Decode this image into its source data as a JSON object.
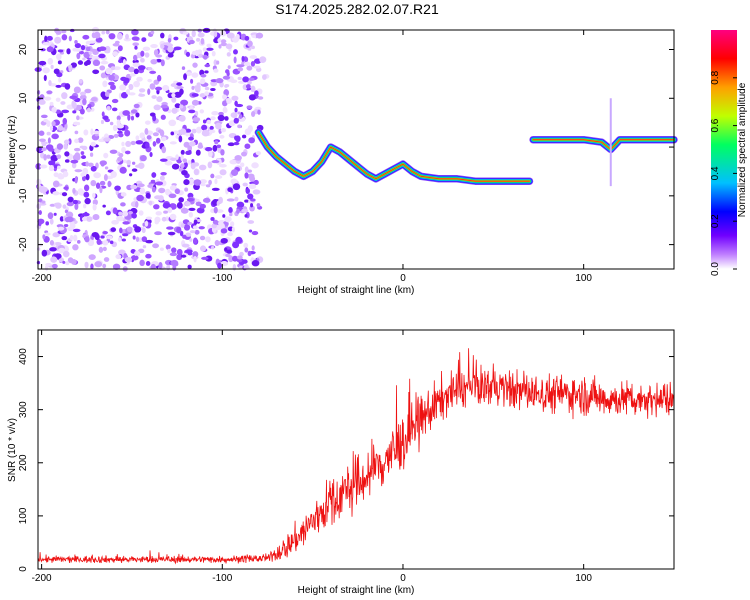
{
  "title": "S174.2025.282.02.07.R21",
  "chart_data": [
    {
      "type": "heatmap",
      "title": "S174.2025.282.02.07.R21",
      "xlabel": "Height of straight line (km)",
      "ylabel": "Frequency (Hz)",
      "xlim": [
        -202,
        150
      ],
      "ylim": [
        -25,
        24
      ],
      "xticks": [
        -200,
        -100,
        0,
        100
      ],
      "yticks": [
        -20,
        -10,
        0,
        10,
        20
      ],
      "colorbar": {
        "label": "Normalized spectral amplitude",
        "range": [
          0,
          1
        ],
        "ticks": [
          "0.0",
          "0.2",
          "0.4",
          "0.6",
          "0.8"
        ],
        "colors": [
          "#ffffff",
          "#c080ff",
          "#7000ff",
          "#0000ff",
          "#00c0ff",
          "#00ff60",
          "#c0ff00",
          "#ffa000",
          "#ff0000",
          "#ff0080"
        ]
      },
      "noise_region_km": [
        -202,
        -75
      ],
      "track": {
        "x": [
          -80,
          -75,
          -70,
          -65,
          -60,
          -55,
          -50,
          -45,
          -40,
          -35,
          -30,
          -25,
          -20,
          -15,
          -10,
          -5,
          0,
          5,
          10,
          20,
          30,
          40,
          50,
          60,
          70,
          72,
          80,
          90,
          100,
          110,
          115,
          120,
          130,
          140,
          150
        ],
        "y": [
          3,
          0,
          -2,
          -3.5,
          -5,
          -6,
          -5,
          -3,
          0,
          -1,
          -2.5,
          -4,
          -5.5,
          -6.5,
          -5.5,
          -4.5,
          -3.5,
          -5,
          -6,
          -6.5,
          -6.5,
          -7,
          -7,
          -7,
          -7,
          1.5,
          1.5,
          1.5,
          1.5,
          1,
          -0.5,
          1.5,
          1.5,
          1.5,
          1.5
        ]
      }
    },
    {
      "type": "line",
      "xlabel": "Height of straight line (km)",
      "ylabel": "SNR (10 * v/v)",
      "xlim": [
        -202,
        150
      ],
      "ylim": [
        0,
        450
      ],
      "xticks": [
        -200,
        -100,
        0,
        100
      ],
      "yticks": [
        0,
        100,
        200,
        300,
        400
      ],
      "color": "#ee1111",
      "envelope": {
        "x": [
          -202,
          -150,
          -100,
          -75,
          -65,
          -55,
          -45,
          -35,
          -25,
          -15,
          -5,
          5,
          15,
          25,
          35,
          45,
          55,
          65,
          75,
          85,
          95,
          105,
          115,
          125,
          135,
          150
        ],
        "mean": [
          18,
          18,
          18,
          20,
          40,
          70,
          110,
          140,
          160,
          190,
          220,
          260,
          300,
          330,
          340,
          345,
          340,
          335,
          330,
          330,
          330,
          325,
          320,
          320,
          320,
          320
        ],
        "spread": [
          12,
          12,
          12,
          14,
          40,
          60,
          80,
          90,
          95,
          100,
          100,
          90,
          80,
          70,
          65,
          65,
          65,
          65,
          65,
          65,
          65,
          65,
          60,
          60,
          55,
          55
        ]
      }
    }
  ]
}
